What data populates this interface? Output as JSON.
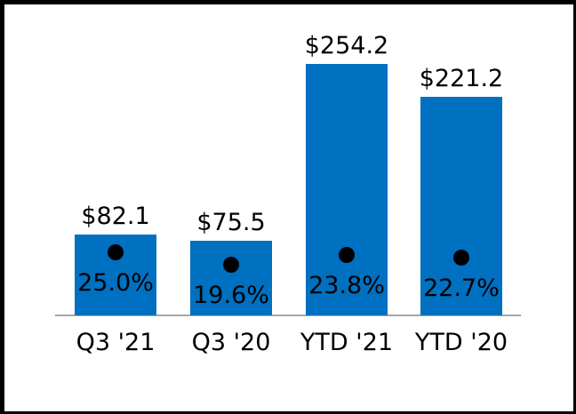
{
  "chart_data": {
    "type": "bar",
    "title": "",
    "xlabel": "",
    "ylabel": "",
    "categories": [
      "Q3 '21",
      "Q3 '20",
      "YTD '21",
      "YTD '20"
    ],
    "series": [
      {
        "name": "dollar-amount",
        "type": "bar",
        "values": [
          82.1,
          75.5,
          254.2,
          221.2
        ],
        "labels": [
          "$82.1",
          "$75.5",
          "$254.2",
          "$221.2"
        ]
      },
      {
        "name": "percent-margin",
        "type": "scatter",
        "values": [
          25.0,
          19.6,
          23.8,
          22.7
        ],
        "labels": [
          "25.0%",
          "19.6%",
          "23.8%",
          "22.7%"
        ]
      }
    ],
    "layout_hints": {
      "grid": false,
      "legend": false,
      "value_labels_position": "above-bar",
      "percent_labels_position": "inside-bar-below-marker",
      "axes_hidden": true
    },
    "colors": {
      "bar": "#0070C0",
      "marker": "#000000",
      "text": "#000000",
      "baseline": "#a6a6a6",
      "frame_border": "#000000",
      "background": "#ffffff"
    }
  }
}
